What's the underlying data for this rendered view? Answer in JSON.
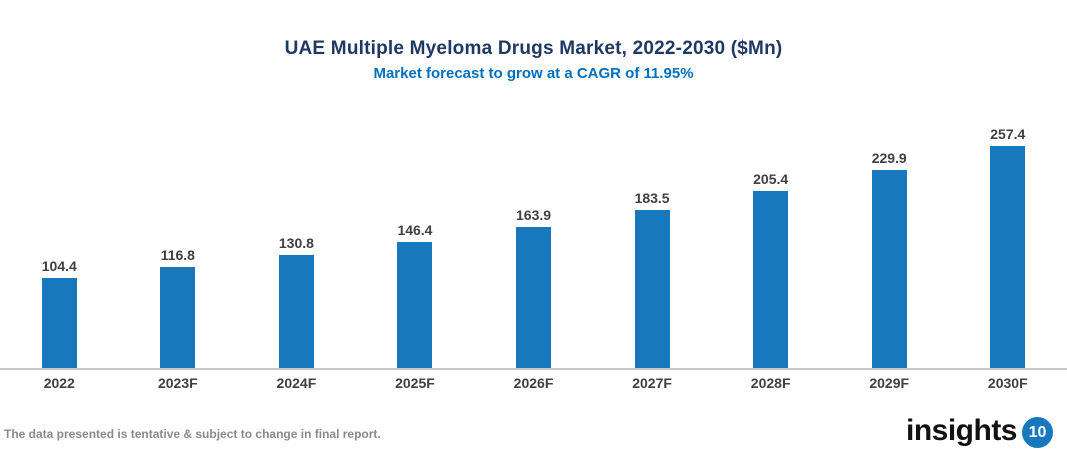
{
  "header": {
    "title": "UAE Multiple Myeloma Drugs Market, 2022-2030 ($Mn)",
    "subtitle": "Market forecast to grow at a CAGR of 11.95%"
  },
  "chart_data": {
    "type": "bar",
    "categories": [
      "2022",
      "2023F",
      "2024F",
      "2025F",
      "2026F",
      "2027F",
      "2028F",
      "2029F",
      "2030F"
    ],
    "values": [
      104.4,
      116.8,
      130.8,
      146.4,
      163.9,
      183.5,
      205.4,
      229.9,
      257.4
    ],
    "title": "UAE Multiple Myeloma Drugs Market, 2022-2030 ($Mn)",
    "subtitle": "Market forecast to grow at a CAGR of 11.95%",
    "xlabel": "",
    "ylabel": "",
    "ylim": [
      0,
      280
    ],
    "grid": false,
    "legend": null,
    "value_labels": true,
    "bar_color": "#1878BE"
  },
  "footer": {
    "disclaimer": "The data presented is tentative & subject to change in final report.",
    "logo_text": "insights",
    "logo_badge": "10"
  },
  "colors": {
    "title": "#1F3864",
    "subtitle": "#0070C0",
    "bar": "#1878BE",
    "label": "#404040",
    "axis_line": "#C9C9C9",
    "disclaimer": "#8A8A8A",
    "logo_badge_bg": "#1878BE"
  }
}
